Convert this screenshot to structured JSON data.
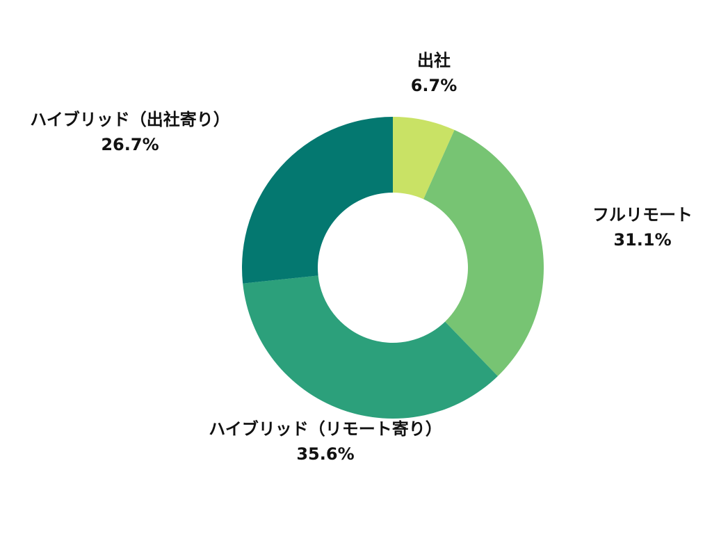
{
  "chart_data": {
    "type": "pie",
    "variant": "donut",
    "title": "",
    "start_angle_deg": 0,
    "direction": "clockwise",
    "legend": "none",
    "slices": [
      {
        "label": "出社",
        "value": 6.7,
        "value_label": "6.7%",
        "color": "#c9e265"
      },
      {
        "label": "フルリモート",
        "value": 31.1,
        "value_label": "31.1%",
        "color": "#77c473"
      },
      {
        "label": "ハイブリッド（リモート寄り）",
        "value": 35.6,
        "value_label": "35.6%",
        "color": "#2ca07b"
      },
      {
        "label": "ハイブリッド（出社寄り）",
        "value": 26.7,
        "value_label": "26.7%",
        "color": "#047870"
      }
    ]
  }
}
